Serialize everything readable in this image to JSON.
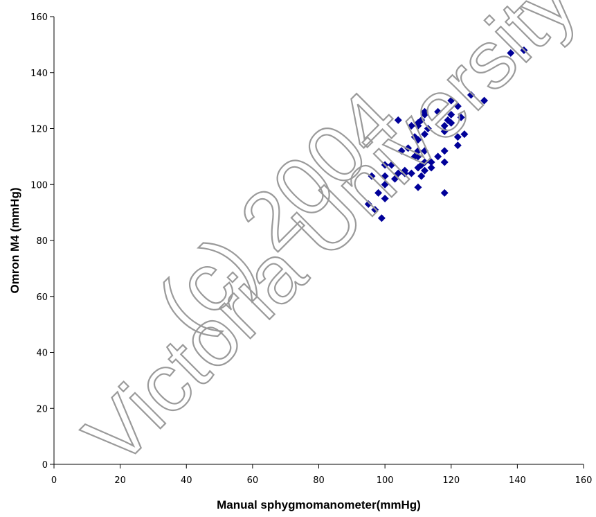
{
  "chart_data": {
    "type": "scatter",
    "title": "",
    "xlabel": "Manual sphygmomanometer(mmHg)",
    "ylabel": "Omron M4 (mmHg)",
    "xlim": [
      0,
      160
    ],
    "ylim": [
      0,
      160
    ],
    "xticks": [
      0,
      20,
      40,
      60,
      80,
      100,
      120,
      140,
      160
    ],
    "yticks": [
      0,
      20,
      40,
      60,
      80,
      100,
      120,
      140,
      160
    ],
    "grid": false,
    "marker": "diamond",
    "marker_color": "#000099",
    "series": [
      {
        "points": [
          [
            95,
            93
          ],
          [
            96,
            103
          ],
          [
            97,
            91
          ],
          [
            98,
            97
          ],
          [
            99,
            88
          ],
          [
            100,
            95
          ],
          [
            100,
            100
          ],
          [
            100,
            103
          ],
          [
            100,
            107
          ],
          [
            102,
            107
          ],
          [
            103,
            102
          ],
          [
            104,
            104
          ],
          [
            104,
            123
          ],
          [
            105,
            112
          ],
          [
            106,
            105
          ],
          [
            106,
            104
          ],
          [
            107,
            113
          ],
          [
            108,
            104
          ],
          [
            108,
            121
          ],
          [
            109,
            117
          ],
          [
            109,
            110
          ],
          [
            110,
            106
          ],
          [
            110,
            110
          ],
          [
            110,
            112
          ],
          [
            110,
            116
          ],
          [
            110,
            121
          ],
          [
            110,
            122
          ],
          [
            110,
            99
          ],
          [
            111,
            103
          ],
          [
            111,
            107
          ],
          [
            111,
            123
          ],
          [
            112,
            105
          ],
          [
            112,
            108
          ],
          [
            112,
            112
          ],
          [
            112,
            118
          ],
          [
            112,
            125
          ],
          [
            112,
            126
          ],
          [
            113,
            120
          ],
          [
            114,
            106
          ],
          [
            114,
            108
          ],
          [
            116,
            110
          ],
          [
            116,
            126
          ],
          [
            118,
            97
          ],
          [
            118,
            108
          ],
          [
            118,
            112
          ],
          [
            118,
            119
          ],
          [
            118,
            121
          ],
          [
            119,
            123
          ],
          [
            120,
            130
          ],
          [
            120,
            122
          ],
          [
            120,
            125
          ],
          [
            122,
            114
          ],
          [
            122,
            117
          ],
          [
            122,
            128
          ],
          [
            123,
            124
          ],
          [
            124,
            118
          ],
          [
            126,
            132
          ],
          [
            130,
            130
          ],
          [
            138,
            147
          ],
          [
            142,
            148
          ]
        ]
      }
    ],
    "watermark_lines": [
      "(c) 2004",
      "Victoria University"
    ]
  }
}
